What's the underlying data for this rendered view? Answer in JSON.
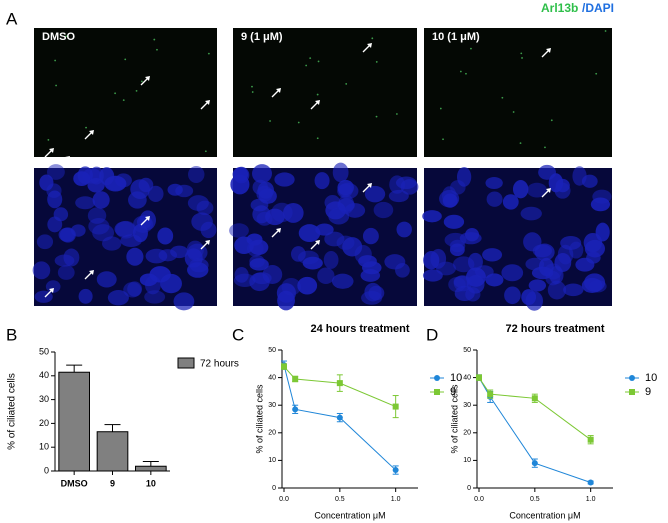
{
  "figure": {
    "panel_labels": [
      "A",
      "B",
      "C",
      "D"
    ],
    "stain_primary": "Arl13b",
    "stain_secondary": "/DAPI",
    "image_labels": [
      "DMSO",
      "9 (1 μM)",
      "10 (1 μM)"
    ]
  },
  "chart_data": [
    {
      "type": "bar",
      "ylabel": "% of ciliated cells",
      "categories": [
        "DMSO",
        "9",
        "10"
      ],
      "series": [
        {
          "name": "72 hours",
          "color": "#808080",
          "values": [
            41.5,
            16.5,
            2
          ],
          "errors": [
            3,
            3,
            2
          ]
        }
      ],
      "ylim": [
        0,
        50
      ],
      "yticks": [
        0,
        10,
        20,
        30,
        40,
        50
      ]
    },
    {
      "type": "line",
      "title": "24 hours treatment",
      "xlabel": "Concentration μM",
      "ylabel": "% of ciliated cells",
      "x": [
        0,
        0.1,
        0.5,
        1.0
      ],
      "xlim": [
        0,
        1.2
      ],
      "xticks": [
        {
          "value": 0,
          "label": "0.0"
        },
        {
          "value": 0.5,
          "label": "0.5"
        },
        {
          "value": 1.0,
          "label": "1.0"
        }
      ],
      "ylim": [
        0,
        50
      ],
      "yticks": [
        0,
        10,
        20,
        30,
        40,
        50
      ],
      "series": [
        {
          "name": "10",
          "color": "#1f86d8",
          "marker": "circle",
          "values": [
            44.5,
            28.5,
            25.5,
            6.5
          ],
          "errors": [
            1.5,
            1.5,
            1.5,
            1.5
          ]
        },
        {
          "name": "9",
          "color": "#7cc834",
          "marker": "square",
          "values": [
            44,
            39.5,
            38,
            29.5
          ],
          "errors": [
            1,
            1,
            3,
            4
          ]
        }
      ]
    },
    {
      "type": "line",
      "title": "72 hours treatment",
      "xlabel": "Concentration μM",
      "ylabel": "% of ciliated cells",
      "x": [
        0,
        0.1,
        0.5,
        1.0
      ],
      "xlim": [
        0,
        1.2
      ],
      "xticks": [
        {
          "value": 0,
          "label": "0.0"
        },
        {
          "value": 0.5,
          "label": "0.5"
        },
        {
          "value": 1.0,
          "label": "1.0"
        }
      ],
      "ylim": [
        0,
        50
      ],
      "yticks": [
        0,
        10,
        20,
        30,
        40,
        50
      ],
      "series": [
        {
          "name": "10",
          "color": "#1f86d8",
          "marker": "circle",
          "values": [
            40,
            33,
            9,
            2
          ],
          "errors": [
            1,
            2,
            1.5,
            0.5
          ]
        },
        {
          "name": "9",
          "color": "#7cc834",
          "marker": "square",
          "values": [
            40,
            34,
            32.5,
            17.5
          ],
          "errors": [
            1,
            1.5,
            1.5,
            1.5
          ]
        }
      ]
    }
  ]
}
